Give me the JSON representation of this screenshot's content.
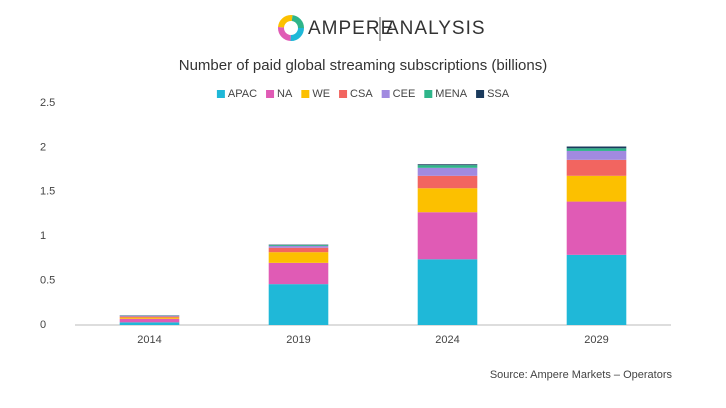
{
  "logo": {
    "brand": "AMPERE",
    "sub": "ANALYSIS"
  },
  "chart_data": {
    "type": "stacked_bar",
    "title": "Number of paid global streaming subscriptions (billions)",
    "categories": [
      "2014",
      "2019",
      "2024",
      "2029"
    ],
    "series": [
      {
        "name": "APAC",
        "color": "#1fb8d8",
        "values": [
          0.03,
          0.46,
          0.74,
          0.79
        ]
      },
      {
        "name": "NA",
        "color": "#e05bb5",
        "values": [
          0.04,
          0.24,
          0.53,
          0.6
        ]
      },
      {
        "name": "WE",
        "color": "#fcc000",
        "values": [
          0.015,
          0.12,
          0.27,
          0.29
        ]
      },
      {
        "name": "CSA",
        "color": "#f26560",
        "values": [
          0.01,
          0.05,
          0.14,
          0.18
        ]
      },
      {
        "name": "CEE",
        "color": "#a18ae0",
        "values": [
          0.01,
          0.02,
          0.09,
          0.1
        ]
      },
      {
        "name": "MENA",
        "color": "#2fb58a",
        "values": [
          0.003,
          0.01,
          0.03,
          0.03
        ]
      },
      {
        "name": "SSA",
        "color": "#1a3a5c",
        "values": [
          0.002,
          0.005,
          0.01,
          0.02
        ]
      }
    ],
    "ylim": [
      0,
      2.5
    ],
    "yticks": [
      0,
      0.5,
      1,
      1.5,
      2,
      2.5
    ],
    "grid": false,
    "legend": "top",
    "source": "Source: Ampere Markets – Operators"
  }
}
